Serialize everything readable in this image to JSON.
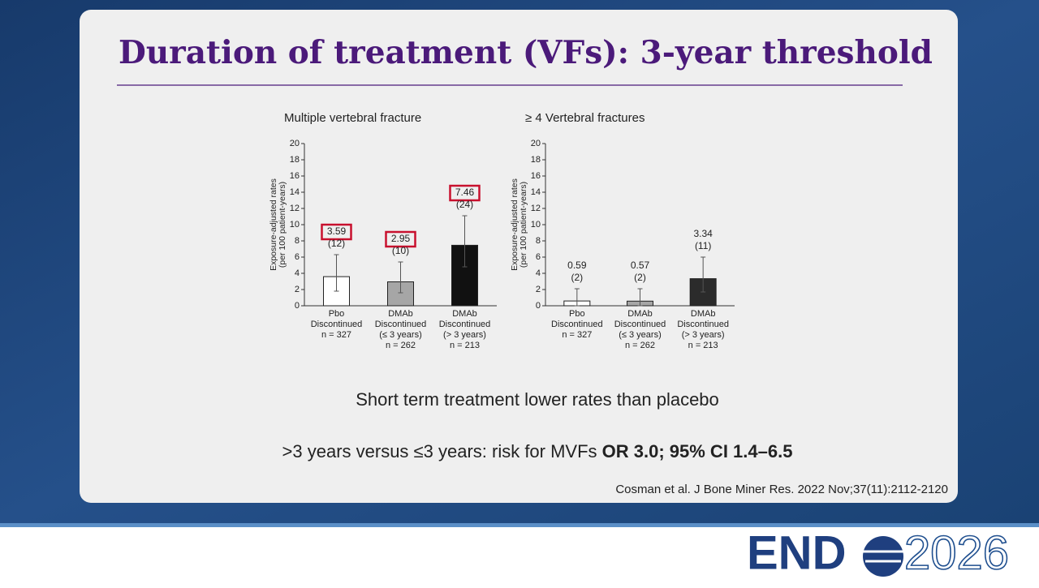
{
  "header": {
    "title": "Duration of treatment (VFs): 3-year threshold"
  },
  "chart_data": [
    {
      "type": "bar",
      "title": "Multiple vertebral fracture",
      "ylabel": [
        "Exposure-adjusted rates",
        "(per 100 patient-years)"
      ],
      "categories": [
        [
          "Pbo",
          "Discontinued",
          "n = 327"
        ],
        [
          "DMAb",
          "Discontinued",
          "(≤ 3 years)",
          "n = 262"
        ],
        [
          "DMAb",
          "Discontinued",
          "(> 3 years)",
          "n = 213"
        ]
      ],
      "values": [
        3.59,
        2.95,
        7.46
      ],
      "events": [
        "(12)",
        "(10)",
        "(24)"
      ],
      "ci_low": [
        1.8,
        1.6,
        4.8
      ],
      "ci_high": [
        6.3,
        5.4,
        11.1
      ],
      "colors": [
        "#ffffff",
        "#a6a6a6",
        "#111111"
      ],
      "highlight": true,
      "ylim": [
        0,
        20
      ],
      "yticks": [
        0,
        2,
        4,
        6,
        8,
        10,
        12,
        14,
        16,
        18,
        20
      ]
    },
    {
      "type": "bar",
      "title": "≥ 4 Vertebral fractures",
      "ylabel": [
        "Exposure-adjusted rates",
        "(per 100 patient-years)"
      ],
      "categories": [
        [
          "Pbo",
          "Discontinued",
          "n = 327"
        ],
        [
          "DMAb",
          "Discontinued",
          "(≤ 3 years)",
          "n = 262"
        ],
        [
          "DMAb",
          "Discontinued",
          "(> 3 years)",
          "n = 213"
        ]
      ],
      "values": [
        0.59,
        0.57,
        3.34
      ],
      "events": [
        "(2)",
        "(2)",
        "(11)"
      ],
      "ci_low": [
        0,
        0,
        1.7
      ],
      "ci_high": [
        2.1,
        2.1,
        6.0
      ],
      "colors": [
        "#ffffff",
        "#a6a6a6",
        "#2b2b2b"
      ],
      "highlight": false,
      "ylim": [
        0,
        20
      ],
      "yticks": [
        0,
        2,
        4,
        6,
        8,
        10,
        12,
        14,
        16,
        18,
        20
      ]
    }
  ],
  "body": {
    "line1": "Short term treatment lower rates than placebo",
    "line2": ">3 years versus ≤3 years: risk for MVFs ",
    "line2_bold": "OR 3.0; 95% CI 1.4–6.5",
    "citation": "Cosman et al. J Bone Miner Res. 2022 Nov;37(11):2112-2120"
  },
  "logo": {
    "text": "END",
    "year": "2026"
  }
}
